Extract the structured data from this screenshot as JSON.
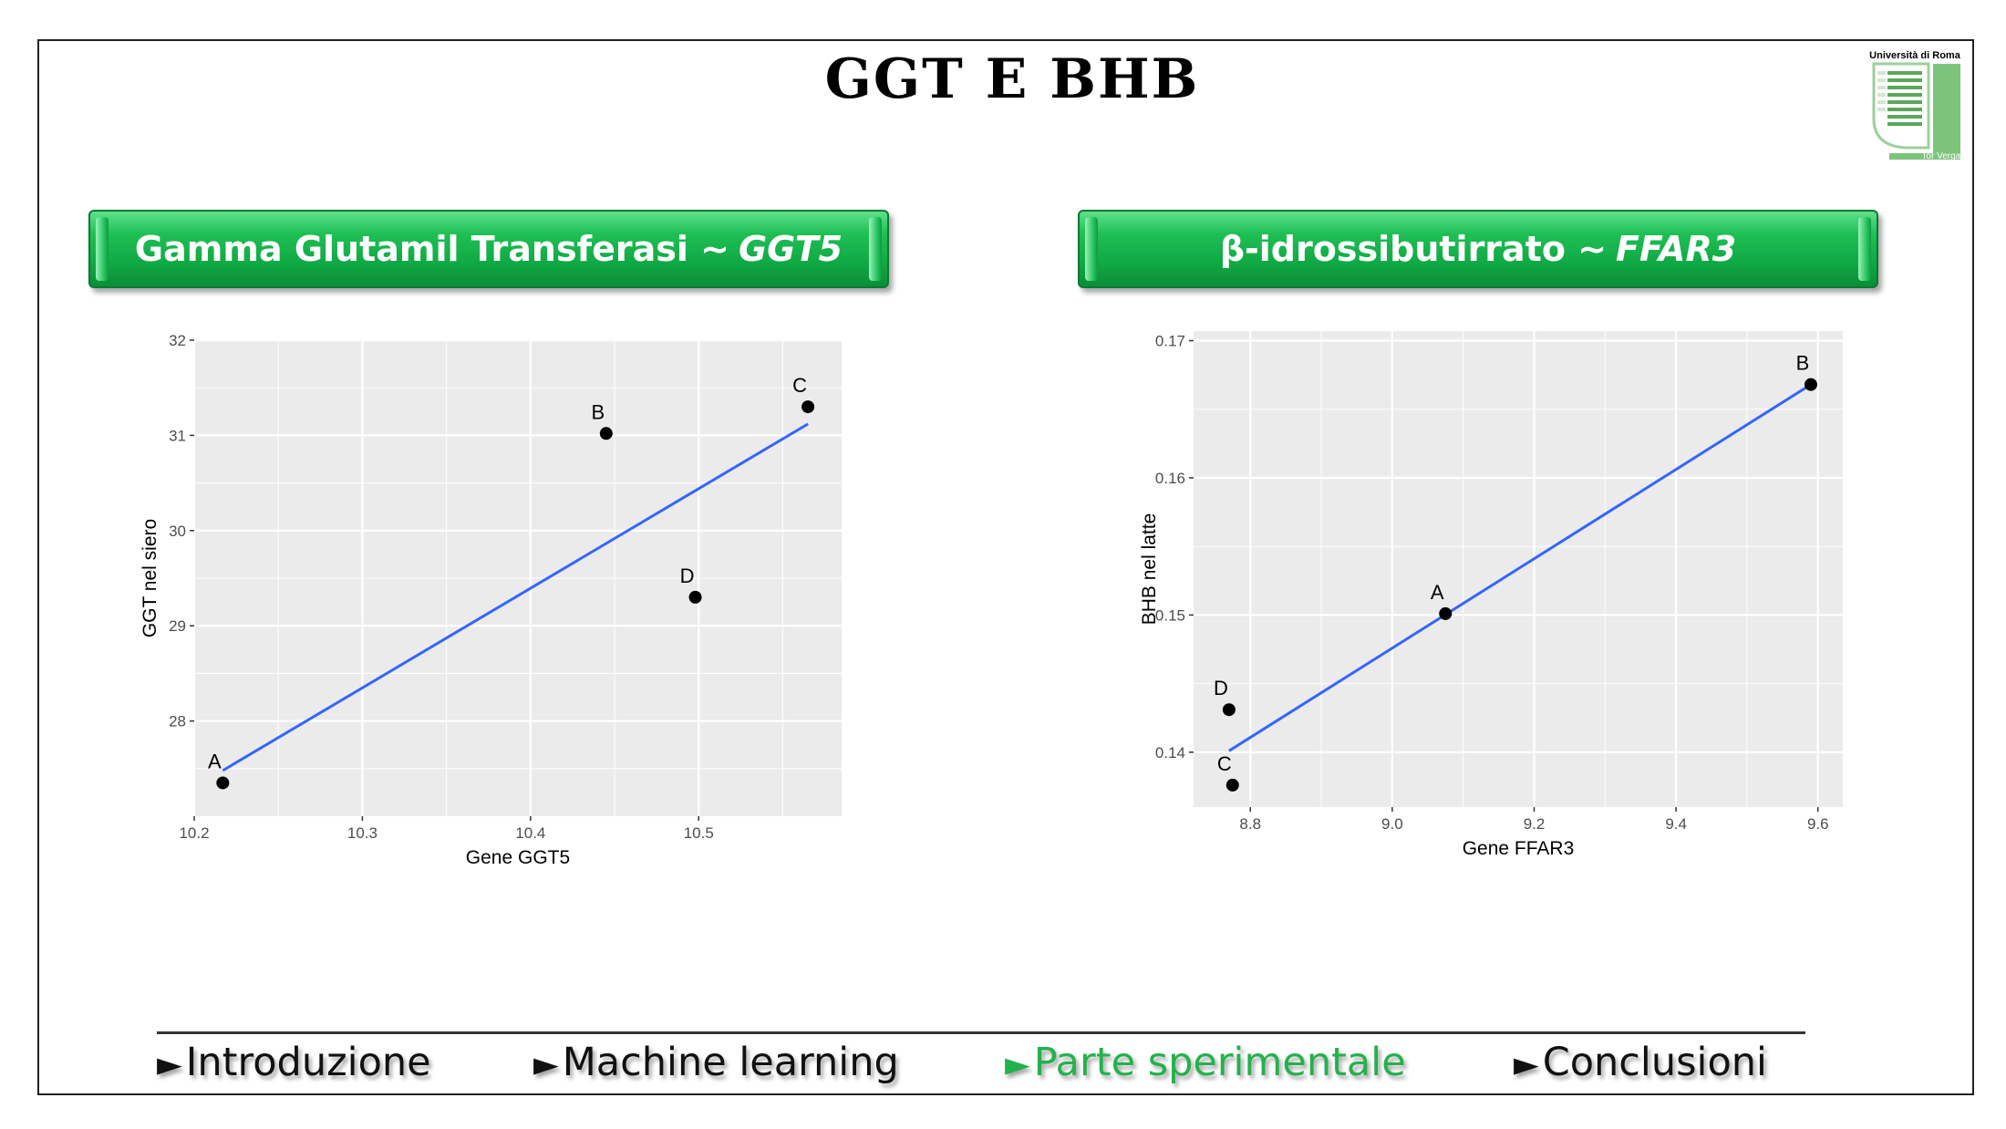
{
  "slide": {
    "title": "GGT E BHB",
    "logo_text_top": "Università di Roma",
    "logo_text_bottom": "Tor Vergata"
  },
  "headers": {
    "left_main": "Gamma Glutamil Transferasi ~",
    "left_gene": "GGT5",
    "right_main": "β-idrossibutirrato ~",
    "right_gene": "FFAR3"
  },
  "nav": {
    "items": [
      "Introduzione",
      "Machine learning",
      "Parte sperimentale",
      "Conclusioni"
    ],
    "arrow": "►",
    "active_index": 2,
    "active_color": "#22b24c"
  },
  "chart_data": [
    {
      "type": "scatter",
      "title": "",
      "xlabel": "Gene GGT5",
      "ylabel": "GGT   nel siero",
      "xlim": [
        10.2,
        10.585
      ],
      "ylim": [
        27.0,
        32.0
      ],
      "x_ticks": [
        10.2,
        10.3,
        10.4,
        10.5
      ],
      "x_tick_labels": [
        "10.2",
        "10.3",
        "10.4",
        "10.5"
      ],
      "y_ticks": [
        28,
        29,
        30,
        31,
        32
      ],
      "y_tick_labels": [
        "28",
        "29",
        "30",
        "31",
        "32"
      ],
      "points": [
        {
          "label": "A",
          "x": 10.217,
          "y": 27.35
        },
        {
          "label": "B",
          "x": 10.445,
          "y": 31.02
        },
        {
          "label": "C",
          "x": 10.565,
          "y": 31.3
        },
        {
          "label": "D",
          "x": 10.498,
          "y": 29.3
        }
      ],
      "fit_line": {
        "x": [
          10.217,
          10.565
        ],
        "y": [
          27.48,
          31.12
        ],
        "color": "#3366ff"
      },
      "grid": true,
      "panel_color": "#ebebeb"
    },
    {
      "type": "scatter",
      "title": "",
      "xlabel": "Gene FFAR3",
      "ylabel": "BHB nel latte",
      "xlim": [
        8.72,
        9.635
      ],
      "ylim": [
        0.136,
        0.1707
      ],
      "x_ticks": [
        8.8,
        9.0,
        9.2,
        9.4,
        9.6
      ],
      "x_tick_labels": [
        "8.8",
        "9.0",
        "9.2",
        "9.4",
        "9.6"
      ],
      "y_ticks": [
        0.14,
        0.15,
        0.16,
        0.17
      ],
      "y_tick_labels": [
        "0.14",
        "0.15",
        "0.16",
        "0.17"
      ],
      "points": [
        {
          "label": "A",
          "x": 9.075,
          "y": 0.1501
        },
        {
          "label": "B",
          "x": 9.59,
          "y": 0.1668
        },
        {
          "label": "C",
          "x": 8.775,
          "y": 0.1376
        },
        {
          "label": "D",
          "x": 8.77,
          "y": 0.1431
        }
      ],
      "fit_line": {
        "x": [
          8.77,
          9.59
        ],
        "y": [
          0.1401,
          0.1668
        ],
        "color": "#3366ff"
      },
      "grid": true,
      "panel_color": "#ebebeb"
    }
  ]
}
